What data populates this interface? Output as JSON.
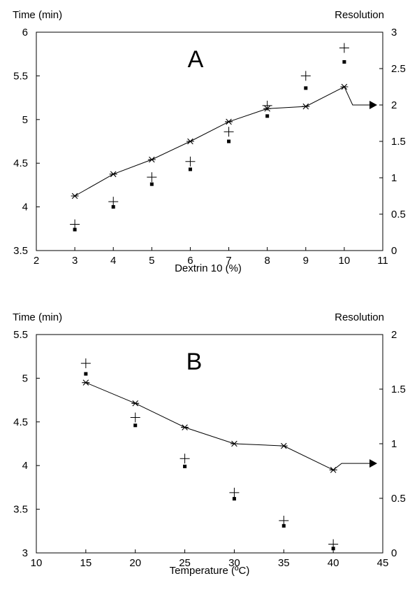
{
  "chart_data": [
    {
      "type": "scatter",
      "panel_label": "A",
      "title": "",
      "xlabel": "Dextrin 10 (%)",
      "ylabel_left": "Time (min)",
      "ylabel_right": "Resolution",
      "xlim": [
        2,
        11
      ],
      "ylim_left": [
        3.5,
        6
      ],
      "ylim_right": [
        0,
        3
      ],
      "x_ticks": [
        "2",
        "3",
        "4",
        "5",
        "6",
        "7",
        "8",
        "9",
        "10",
        "11"
      ],
      "y_ticks_left": [
        "3.5",
        "4",
        "4.5",
        "5",
        "5.5",
        "6"
      ],
      "y_ticks_right": [
        "0",
        "0.5",
        "1",
        "1.5",
        "2",
        "2.5",
        "3"
      ],
      "x": [
        3,
        4,
        5,
        6,
        7,
        8,
        9,
        10
      ],
      "series": [
        {
          "marker": "plus",
          "axis": "left",
          "values": [
            3.8,
            4.06,
            4.34,
            4.52,
            4.86,
            5.16,
            5.5,
            5.82
          ]
        },
        {
          "marker": "square",
          "axis": "left",
          "values": [
            3.74,
            4.0,
            4.26,
            4.43,
            4.75,
            5.04,
            5.36,
            5.66
          ]
        },
        {
          "marker": "asterisk",
          "axis": "right",
          "line": true,
          "values": [
            0.75,
            1.05,
            1.25,
            1.5,
            1.77,
            1.95,
            1.98,
            2.25
          ]
        }
      ],
      "arrow": {
        "direction": "right",
        "at_y": 2.0
      },
      "grid": false
    },
    {
      "type": "scatter",
      "panel_label": "B",
      "title": "",
      "xlabel": "Temperature (ºC)",
      "ylabel_left": "Time (min)",
      "ylabel_right": "Resolution",
      "xlim": [
        10,
        45
      ],
      "ylim_left": [
        3,
        5.5
      ],
      "ylim_right": [
        0,
        2
      ],
      "x_ticks": [
        "10",
        "15",
        "20",
        "25",
        "30",
        "35",
        "40",
        "45"
      ],
      "y_ticks_left": [
        "3",
        "3.5",
        "4",
        "4.5",
        "5",
        "5.5"
      ],
      "y_ticks_right": [
        "0",
        "0.5",
        "1",
        "1.5",
        "2"
      ],
      "x": [
        15,
        20,
        25,
        30,
        35,
        40
      ],
      "series": [
        {
          "marker": "plus",
          "axis": "left",
          "values": [
            5.17,
            4.55,
            4.08,
            3.69,
            3.37,
            3.1
          ]
        },
        {
          "marker": "square",
          "axis": "left",
          "values": [
            5.05,
            4.46,
            3.99,
            3.62,
            3.31,
            3.05
          ]
        },
        {
          "marker": "asterisk",
          "axis": "right",
          "line": true,
          "values": [
            1.56,
            1.37,
            1.15,
            1.0,
            0.98,
            0.76
          ]
        }
      ],
      "arrow": {
        "direction": "right",
        "at_y": 0.82
      },
      "grid": false
    }
  ]
}
